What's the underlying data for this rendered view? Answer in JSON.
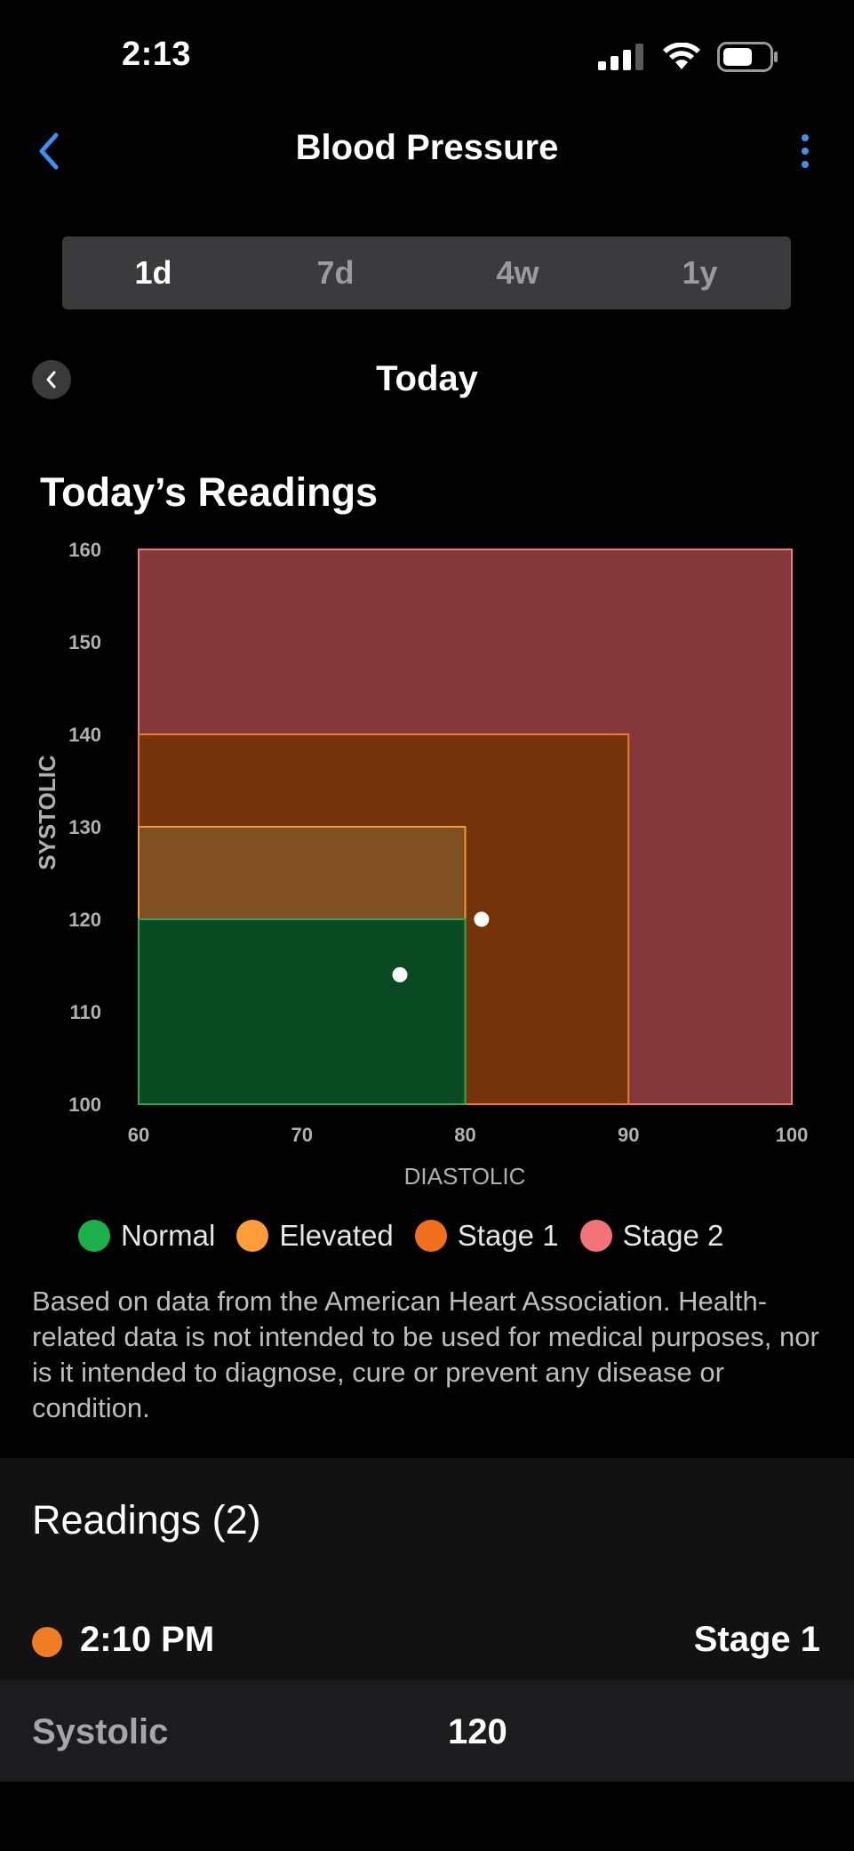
{
  "status_bar": {
    "time": "2:13",
    "icons": [
      "signal-icon",
      "wifi-icon",
      "battery-icon"
    ]
  },
  "nav": {
    "title": "Blood Pressure",
    "back_icon": "chevron-left-icon",
    "more_icon": "more-vertical-icon",
    "accent_color": "#3d8ff5"
  },
  "segments": [
    {
      "label": "1d",
      "active": true
    },
    {
      "label": "7d",
      "active": false
    },
    {
      "label": "4w",
      "active": false
    },
    {
      "label": "1y",
      "active": false
    }
  ],
  "date_nav": {
    "label": "Today",
    "prev_icon": "chevron-left-icon"
  },
  "section_title": "Today’s Readings",
  "chart_data": {
    "type": "scatter",
    "title": "",
    "xlabel": "DIASTOLIC",
    "ylabel": "SYSTOLIC",
    "xlim": [
      60,
      100
    ],
    "ylim": [
      100,
      160
    ],
    "x_ticks": [
      "60",
      "70",
      "80",
      "90",
      "100"
    ],
    "y_ticks": [
      "100",
      "110",
      "120",
      "130",
      "140",
      "150",
      "160"
    ],
    "zones": [
      {
        "name": "Stage 2",
        "x": [
          60,
          100
        ],
        "y": [
          100,
          160
        ],
        "fill": "#843a3a",
        "stroke": "#f07878"
      },
      {
        "name": "Stage 1",
        "x": [
          60,
          90
        ],
        "y": [
          100,
          140
        ],
        "fill": "#743308",
        "stroke": "#f0792a"
      },
      {
        "name": "Elevated",
        "x": [
          60,
          80
        ],
        "y": [
          100,
          130
        ],
        "fill": "#7e4f21",
        "stroke": "#f59a3a"
      },
      {
        "name": "Normal",
        "x": [
          60,
          80
        ],
        "y": [
          100,
          120
        ],
        "fill": "#0a4a22",
        "stroke": "#2fa856"
      }
    ],
    "points": [
      {
        "x": 76,
        "y": 114
      },
      {
        "x": 81,
        "y": 120
      }
    ],
    "grid": false,
    "legend_position": "bottom"
  },
  "legend": [
    {
      "label": "Normal",
      "color": "#1db04a"
    },
    {
      "label": "Elevated",
      "color": "#ff9d3a"
    },
    {
      "label": "Stage 1",
      "color": "#f0701e"
    },
    {
      "label": "Stage 2",
      "color": "#f27479"
    }
  ],
  "disclaimer": "Based on data from the American Heart Association. Health-related data is not intended to be used for medical purposes, nor is it intended to diagnose, cure or prevent any disease or condition.",
  "readings": {
    "title": "Readings (2)",
    "items": [
      {
        "time": "2:10 PM",
        "status": "Stage 1",
        "color": "#f07c24",
        "detail_label": "Systolic",
        "detail_value": "120"
      }
    ]
  }
}
